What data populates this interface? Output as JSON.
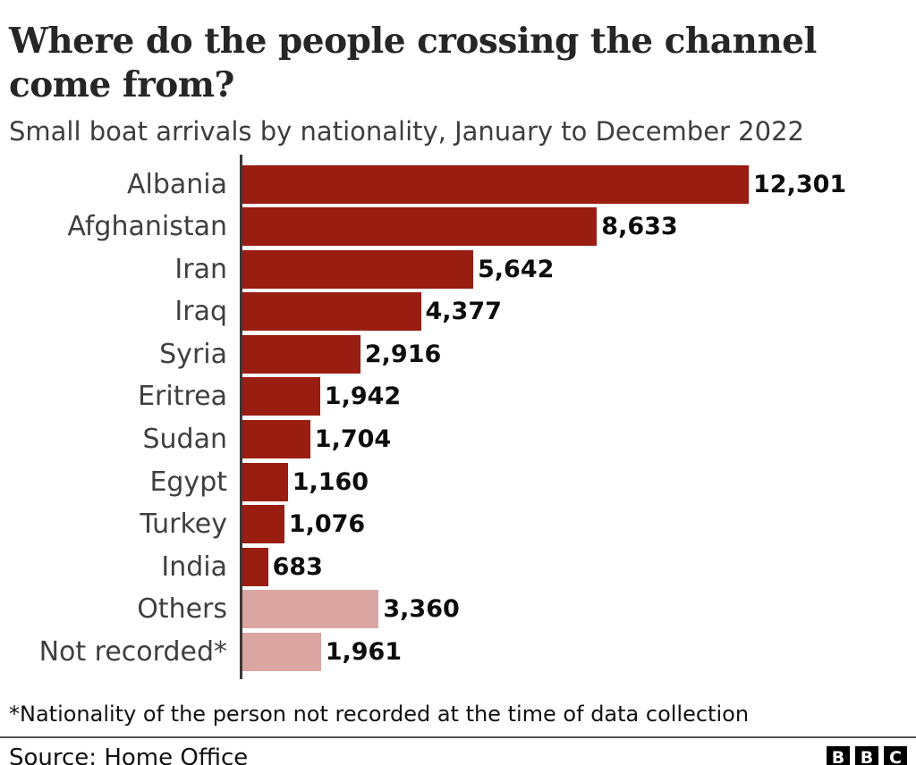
{
  "header": {
    "title": "Where do the people crossing the channel come from?",
    "subtitle": "Small boat arrivals by nationality, January to December 2022"
  },
  "chart_data": {
    "type": "bar",
    "orientation": "horizontal",
    "title": "Where do the people crossing the channel come from?",
    "subtitle": "Small boat arrivals by nationality, January to December 2022",
    "categories": [
      "Albania",
      "Afghanistan",
      "Iran",
      "Iraq",
      "Syria",
      "Eritrea",
      "Sudan",
      "Egypt",
      "Turkey",
      "India",
      "Others",
      "Not recorded*"
    ],
    "values": [
      12301,
      8633,
      5642,
      4377,
      2916,
      1942,
      1704,
      1160,
      1076,
      683,
      3360,
      1961
    ],
    "value_labels": [
      "12,301",
      "8,633",
      "5,642",
      "4,377",
      "2,916",
      "1,942",
      "1,704",
      "1,160",
      "1,076",
      "683",
      "3,360",
      "1,961"
    ],
    "muted_categories": [
      "Others",
      "Not recorded*"
    ],
    "bar_colors": {
      "default": "#9a1d12",
      "muted": "#dba5a2"
    },
    "axis_color": "#3a3a3a",
    "xlim": [
      0,
      12301
    ],
    "grid": false,
    "legend": "none",
    "value_label_position": "outside-end"
  },
  "footer": {
    "footnote": "*Nationality of the person not recorded at the time of data collection",
    "source": "Source: Home Office",
    "logo_letters": [
      "B",
      "B",
      "C"
    ]
  }
}
